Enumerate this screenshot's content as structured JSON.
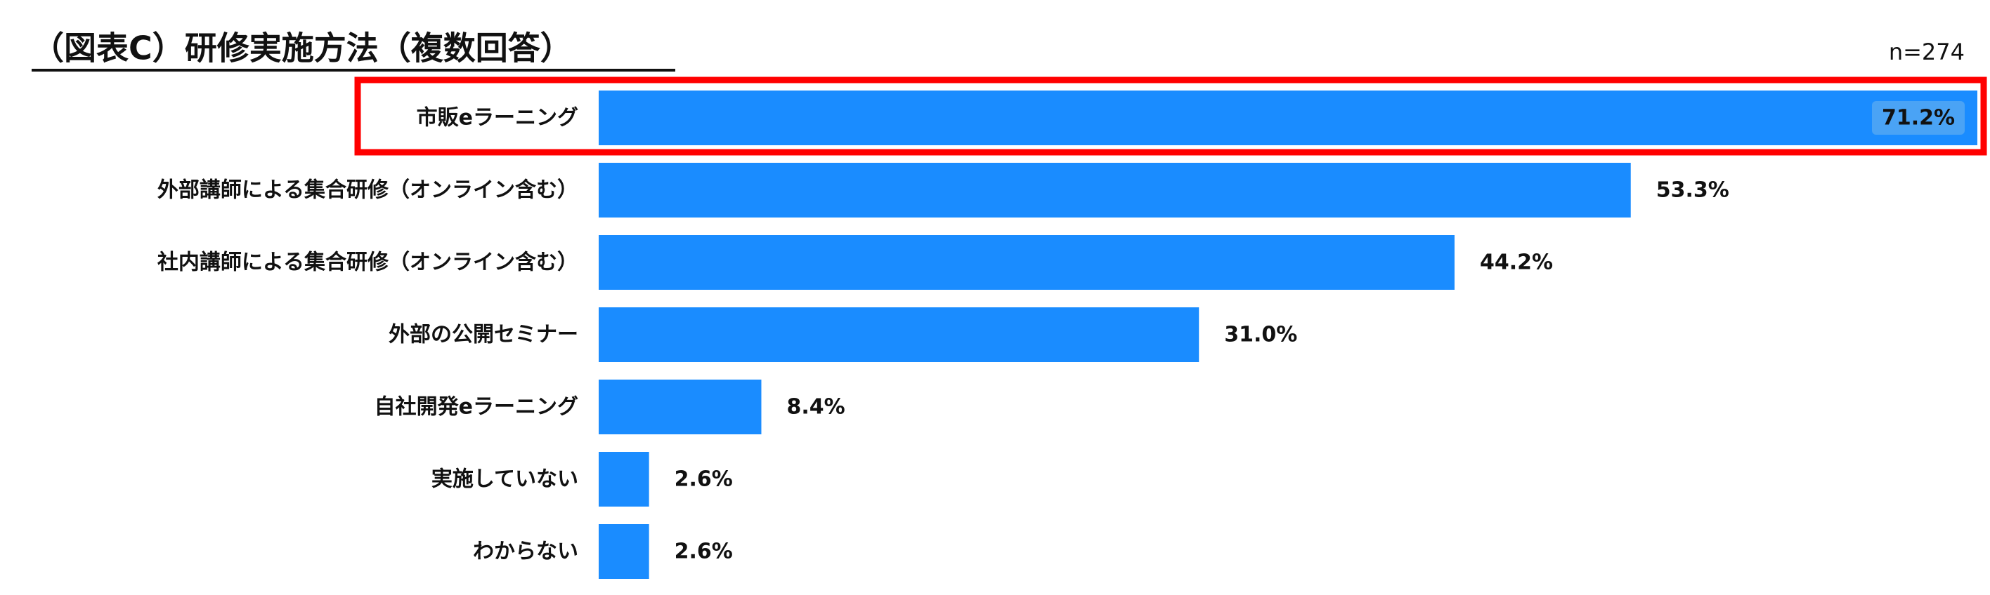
{
  "chart_data": {
    "type": "bar",
    "orientation": "horizontal",
    "title": "（図表C）研修実施方法（複数回答）",
    "note": "n=274",
    "categories": [
      "市販eラーニング",
      "外部講師による集合研修（オンライン含む）",
      "社内講師による集合研修（オンライン含む）",
      "外部の公開セミナー",
      "自社開発eラーニング",
      "実施していない",
      "わからない"
    ],
    "values": [
      71.2,
      53.3,
      44.2,
      31.0,
      8.4,
      2.6,
      2.6
    ],
    "value_labels": [
      "71.2%",
      "53.3%",
      "44.2%",
      "31.0%",
      "8.4%",
      "2.6%",
      "2.6%"
    ],
    "color": "#1a8cff"
  }
}
